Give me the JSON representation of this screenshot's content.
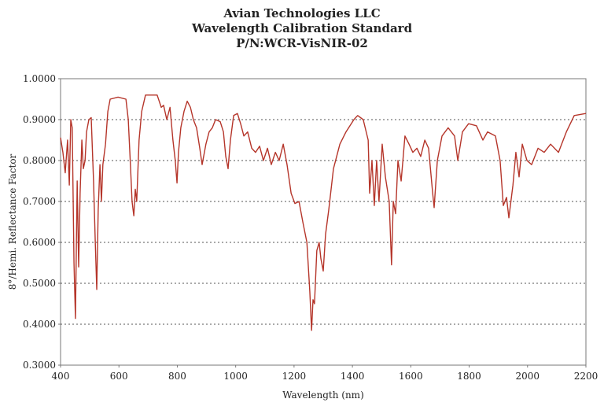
{
  "chart_data": {
    "type": "line",
    "title": [
      "Avian Technologies LLC",
      "Wavelength Calibration Standard",
      "P/N:WCR-VisNIR-02"
    ],
    "x_label": "Wavelength (nm)",
    "y_label": "8°/Hemi. Reflectance Factor",
    "xlim": [
      400,
      2200
    ],
    "ylim": [
      0.3,
      1.0
    ],
    "xticks": [
      400,
      600,
      800,
      1000,
      1200,
      1400,
      1600,
      1800,
      2000,
      2200
    ],
    "yticks": [
      {
        "value": 0.3,
        "label": "0.3000"
      },
      {
        "value": 0.4,
        "label": "0.4000"
      },
      {
        "value": 0.5,
        "label": "0.5000"
      },
      {
        "value": 0.6,
        "label": "0.6000"
      },
      {
        "value": 0.7,
        "label": "0.7000"
      },
      {
        "value": 0.8,
        "label": "0.8000"
      },
      {
        "value": 0.9,
        "label": "0.9000"
      },
      {
        "value": 1.0,
        "label": "1.0000"
      }
    ],
    "grid": true,
    "x": [
      400,
      408,
      416,
      424,
      430,
      435,
      440,
      446,
      451,
      457,
      462,
      467,
      473,
      478,
      484,
      489,
      497,
      505,
      513,
      519,
      524,
      529,
      535,
      540,
      545,
      554,
      562,
      570,
      597,
      624,
      632,
      640,
      645,
      651,
      656,
      661,
      669,
      678,
      691,
      731,
      745,
      753,
      764,
      775,
      785,
      793,
      799,
      804,
      812,
      823,
      834,
      845,
      855,
      866,
      877,
      885,
      898,
      909,
      920,
      931,
      947,
      958,
      966,
      974,
      982,
      993,
      1006,
      1017,
      1028,
      1041,
      1055,
      1068,
      1082,
      1095,
      1109,
      1122,
      1136,
      1149,
      1163,
      1176,
      1190,
      1203,
      1217,
      1230,
      1244,
      1254,
      1260,
      1265,
      1270,
      1278,
      1286,
      1292,
      1300,
      1308,
      1319,
      1335,
      1357,
      1378,
      1405,
      1418,
      1437,
      1454,
      1459,
      1467,
      1475,
      1483,
      1491,
      1502,
      1513,
      1526,
      1534,
      1540,
      1548,
      1556,
      1567,
      1580,
      1594,
      1607,
      1621,
      1634,
      1648,
      1661,
      1675,
      1680,
      1691,
      1707,
      1728,
      1750,
      1761,
      1777,
      1798,
      1825,
      1847,
      1863,
      1890,
      1906,
      1917,
      1928,
      1936,
      1950,
      1960,
      1971,
      1982,
      1998,
      2014,
      2036,
      2057,
      2079,
      2106,
      2133,
      2160,
      2200
    ],
    "series": [
      {
        "name": "Reflectance",
        "color": "#b5352a",
        "values": [
          0.856,
          0.82,
          0.77,
          0.85,
          0.74,
          0.9,
          0.88,
          0.55,
          0.414,
          0.75,
          0.54,
          0.72,
          0.85,
          0.78,
          0.8,
          0.87,
          0.9,
          0.905,
          0.75,
          0.6,
          0.485,
          0.68,
          0.79,
          0.7,
          0.79,
          0.84,
          0.92,
          0.95,
          0.955,
          0.95,
          0.9,
          0.78,
          0.7,
          0.665,
          0.73,
          0.7,
          0.85,
          0.92,
          0.96,
          0.96,
          0.93,
          0.935,
          0.9,
          0.93,
          0.85,
          0.8,
          0.745,
          0.82,
          0.88,
          0.92,
          0.945,
          0.93,
          0.9,
          0.88,
          0.83,
          0.79,
          0.84,
          0.87,
          0.88,
          0.9,
          0.895,
          0.87,
          0.81,
          0.78,
          0.85,
          0.91,
          0.915,
          0.89,
          0.86,
          0.87,
          0.83,
          0.82,
          0.835,
          0.8,
          0.83,
          0.79,
          0.82,
          0.8,
          0.84,
          0.79,
          0.72,
          0.695,
          0.7,
          0.65,
          0.6,
          0.48,
          0.385,
          0.46,
          0.45,
          0.58,
          0.6,
          0.56,
          0.53,
          0.62,
          0.68,
          0.78,
          0.84,
          0.87,
          0.9,
          0.91,
          0.9,
          0.85,
          0.72,
          0.8,
          0.69,
          0.8,
          0.7,
          0.84,
          0.76,
          0.7,
          0.545,
          0.7,
          0.67,
          0.8,
          0.75,
          0.86,
          0.84,
          0.82,
          0.83,
          0.81,
          0.85,
          0.83,
          0.72,
          0.685,
          0.8,
          0.86,
          0.88,
          0.86,
          0.8,
          0.87,
          0.89,
          0.885,
          0.85,
          0.87,
          0.86,
          0.8,
          0.69,
          0.71,
          0.66,
          0.74,
          0.82,
          0.76,
          0.84,
          0.8,
          0.79,
          0.83,
          0.82,
          0.84,
          0.82,
          0.87,
          0.91,
          0.915
        ]
      }
    ]
  }
}
